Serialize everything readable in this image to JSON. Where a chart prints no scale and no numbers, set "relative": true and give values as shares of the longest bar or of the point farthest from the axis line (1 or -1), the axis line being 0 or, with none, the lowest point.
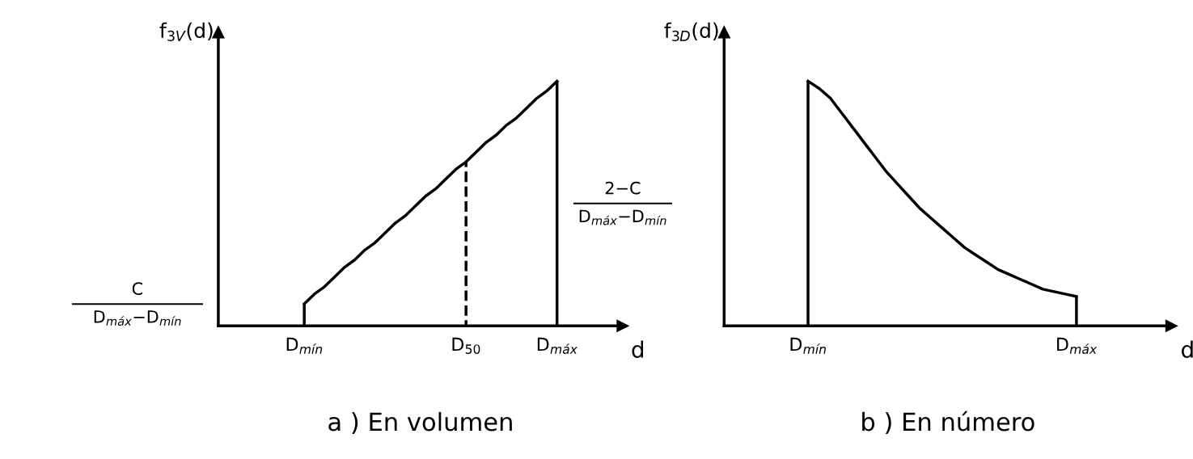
{
  "chart_data": [
    {
      "type": "line",
      "relative": true,
      "xlabel": "d",
      "ylabel": "f$_{3V}$(d)",
      "title": "a ) En volumen",
      "grid": false,
      "legend": false,
      "marker": "none",
      "categories": [
        null,
        null,
        null,
        null,
        null,
        null,
        null,
        null,
        "D$_{mín}$",
        null,
        null,
        null,
        null,
        null,
        null,
        null,
        null,
        null,
        null,
        null,
        null,
        null,
        null,
        null,
        "D$_{50}$",
        null,
        null,
        null,
        null,
        null,
        null,
        null,
        null,
        "D$_{máx}$",
        null,
        null,
        null,
        null,
        null,
        null
      ],
      "series": [
        {
          "color": "#000000",
          "line_style": "solid",
          "values": [
            null,
            null,
            null,
            null,
            null,
            null,
            null,
            null,
            0.09,
            0.13,
            0.16,
            0.2,
            0.24,
            0.27,
            0.31,
            0.34,
            0.38,
            0.42,
            0.45,
            0.49,
            0.53,
            0.56,
            0.6,
            0.64,
            0.67,
            0.71,
            0.75,
            0.78,
            0.82,
            0.85,
            0.89,
            0.93,
            0.96,
            1,
            null,
            null,
            null,
            null,
            null,
            null
          ]
        },
        {
          "type": "bar",
          "color": "#000000",
          "line_style": "solid",
          "values": [
            null,
            null,
            null,
            null,
            null,
            null,
            null,
            null,
            0.09,
            null,
            null,
            null,
            null,
            null,
            null,
            null,
            null,
            null,
            null,
            null,
            null,
            null,
            null,
            null,
            null,
            null,
            null,
            null,
            null,
            null,
            null,
            null,
            null,
            1,
            null,
            null,
            null,
            null,
            null,
            null
          ]
        },
        {
          "type": "bar",
          "color": "#000000",
          "line_style": "dashed",
          "values": [
            null,
            null,
            null,
            null,
            null,
            null,
            null,
            null,
            null,
            null,
            null,
            null,
            null,
            null,
            null,
            null,
            null,
            null,
            null,
            null,
            null,
            null,
            null,
            null,
            0.67,
            null,
            null,
            null,
            null,
            null,
            null,
            null,
            null,
            null,
            null,
            null,
            null,
            null,
            null,
            null
          ]
        }
      ],
      "annotations": [
        "C\nD$_{máx}$−D$_{mín}$",
        "2−C\nD$_{máx}$−D$_{mín}$"
      ]
    },
    {
      "type": "line",
      "relative": true,
      "xlabel": "d",
      "ylabel": "f$_{3D}$(d)",
      "title": "b ) En número",
      "grid": false,
      "legend": false,
      "marker": "none",
      "categories": [
        null,
        null,
        null,
        null,
        null,
        null,
        null,
        "D$_{mín}$",
        null,
        null,
        null,
        null,
        null,
        null,
        null,
        null,
        null,
        null,
        null,
        null,
        null,
        null,
        null,
        null,
        null,
        null,
        null,
        null,
        null,
        null,
        null,
        "D$_{máx}$",
        null,
        null,
        null,
        null,
        null,
        null,
        null,
        null
      ],
      "series": [
        {
          "color": "#000000",
          "line_style": "solid",
          "values": [
            null,
            null,
            null,
            null,
            null,
            null,
            null,
            1,
            0.97,
            0.93,
            0.87,
            0.81,
            0.75,
            0.69,
            0.63,
            0.58,
            0.53,
            0.48,
            0.44,
            0.4,
            0.36,
            0.32,
            0.29,
            0.26,
            0.23,
            0.21,
            0.19,
            0.17,
            0.15,
            0.14,
            0.13,
            0.12,
            null,
            null,
            null,
            null,
            null,
            null,
            null,
            null
          ]
        },
        {
          "type": "bar",
          "color": "#000000",
          "line_style": "solid",
          "values": [
            null,
            null,
            null,
            null,
            null,
            null,
            null,
            1,
            null,
            null,
            null,
            null,
            null,
            null,
            null,
            null,
            null,
            null,
            null,
            null,
            null,
            null,
            null,
            null,
            null,
            null,
            null,
            null,
            null,
            null,
            null,
            0.12,
            null,
            null,
            null,
            null,
            null,
            null,
            null,
            null
          ]
        }
      ]
    }
  ]
}
